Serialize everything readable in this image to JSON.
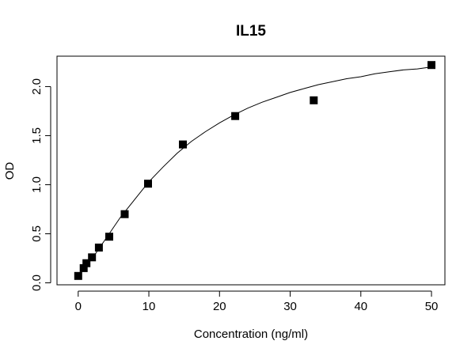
{
  "chart_data": {
    "type": "scatter",
    "title": "IL15",
    "xlabel": "Concentration (ng/ml)",
    "ylabel": "OD",
    "xlim": [
      -3.0,
      51.9
    ],
    "ylim": [
      -0.02,
      2.31
    ],
    "x_ticks": [
      0,
      10,
      20,
      30,
      40,
      50
    ],
    "y_ticks": [
      0.0,
      0.5,
      1.0,
      1.5,
      2.0
    ],
    "grid": false,
    "legend": "none",
    "point_color": "#000000",
    "curve_color": "#000000",
    "series": [
      {
        "marker": "square",
        "x": [
          0,
          0.78,
          1.17,
          1.95,
          2.93,
          4.39,
          6.58,
          9.88,
          14.81,
          22.22,
          33.33,
          50
        ],
        "y": [
          0.07,
          0.15,
          0.2,
          0.26,
          0.36,
          0.47,
          0.7,
          1.01,
          1.41,
          1.7,
          1.86,
          2.22
        ]
      }
    ],
    "fit_curve": {
      "x": [
        0,
        2,
        4,
        6,
        8,
        10,
        12,
        14,
        16,
        18,
        20,
        22,
        24,
        26,
        28,
        30,
        32,
        34,
        36,
        38,
        40,
        42,
        44,
        46,
        48,
        50
      ],
      "y": [
        0.07,
        0.25,
        0.46,
        0.67,
        0.85,
        1.03,
        1.18,
        1.32,
        1.44,
        1.54,
        1.63,
        1.71,
        1.78,
        1.84,
        1.89,
        1.94,
        1.98,
        2.02,
        2.05,
        2.08,
        2.1,
        2.13,
        2.15,
        2.17,
        2.18,
        2.2
      ]
    }
  }
}
